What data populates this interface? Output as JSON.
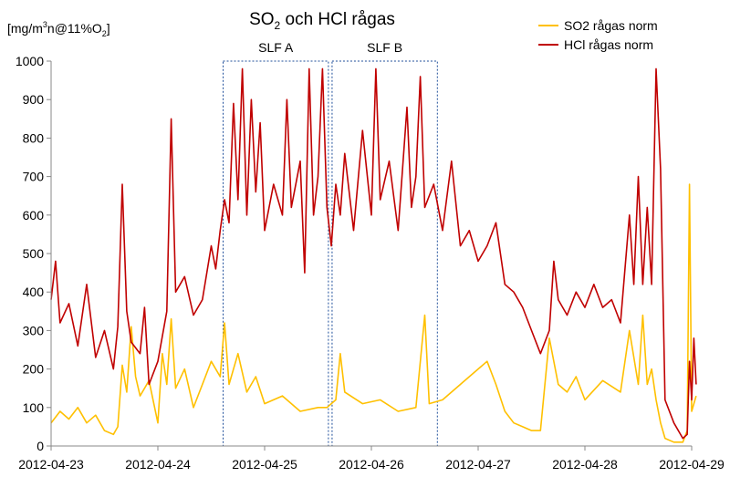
{
  "chart_data": {
    "type": "line",
    "title": {
      "main": "SO",
      "sub": "2",
      "rest": " och HCl rågas"
    },
    "ylabel": {
      "pre": "[mg/m",
      "sup": "3",
      "mid": "n@11%O",
      "sub": "2",
      "post": "]"
    },
    "xlabel": "",
    "x_ticks": [
      "2012-04-23",
      "2012-04-24",
      "2012-04-25",
      "2012-04-26",
      "2012-04-27",
      "2012-04-28",
      "2012-04-29"
    ],
    "xlim": [
      "2012-04-23",
      "2012-04-29"
    ],
    "y_ticks": [
      "0",
      "100",
      "200",
      "300",
      "400",
      "500",
      "600",
      "700",
      "800",
      "900",
      "1000"
    ],
    "ylim": [
      0,
      1000
    ],
    "grid": "none",
    "legend_position": "top-right",
    "regions": [
      {
        "label": "SLF A",
        "x_start": "2012-04-24 14:40",
        "x_end": "2012-04-25 14:20",
        "y_range": [
          0,
          1000
        ]
      },
      {
        "label": "SLF B",
        "x_start": "2012-04-25 15:10",
        "x_end": "2012-04-26 14:50",
        "y_range": [
          0,
          1000
        ]
      }
    ],
    "series": [
      {
        "name": "SO2 rågas norm",
        "color": "#FFC000",
        "points": [
          [
            "2012-04-23 00:00",
            60
          ],
          [
            "2012-04-23 02:00",
            90
          ],
          [
            "2012-04-23 04:00",
            70
          ],
          [
            "2012-04-23 06:00",
            100
          ],
          [
            "2012-04-23 08:00",
            60
          ],
          [
            "2012-04-23 10:00",
            80
          ],
          [
            "2012-04-23 12:00",
            40
          ],
          [
            "2012-04-23 14:00",
            30
          ],
          [
            "2012-04-23 15:00",
            50
          ],
          [
            "2012-04-23 16:00",
            210
          ],
          [
            "2012-04-23 17:00",
            140
          ],
          [
            "2012-04-23 18:00",
            310
          ],
          [
            "2012-04-23 19:00",
            180
          ],
          [
            "2012-04-23 20:00",
            130
          ],
          [
            "2012-04-23 22:00",
            170
          ],
          [
            "2012-04-24 00:00",
            60
          ],
          [
            "2012-04-24 01:00",
            240
          ],
          [
            "2012-04-24 02:00",
            160
          ],
          [
            "2012-04-24 03:00",
            330
          ],
          [
            "2012-04-24 04:00",
            150
          ],
          [
            "2012-04-24 06:00",
            200
          ],
          [
            "2012-04-24 08:00",
            100
          ],
          [
            "2012-04-24 10:00",
            160
          ],
          [
            "2012-04-24 12:00",
            220
          ],
          [
            "2012-04-24 14:00",
            180
          ],
          [
            "2012-04-24 15:00",
            320
          ],
          [
            "2012-04-24 16:00",
            160
          ],
          [
            "2012-04-24 18:00",
            240
          ],
          [
            "2012-04-24 20:00",
            140
          ],
          [
            "2012-04-24 22:00",
            180
          ],
          [
            "2012-04-25 00:00",
            110
          ],
          [
            "2012-04-25 04:00",
            130
          ],
          [
            "2012-04-25 08:00",
            90
          ],
          [
            "2012-04-25 12:00",
            100
          ],
          [
            "2012-04-25 14:00",
            100
          ],
          [
            "2012-04-25 16:00",
            120
          ],
          [
            "2012-04-25 17:00",
            240
          ],
          [
            "2012-04-25 18:00",
            140
          ],
          [
            "2012-04-25 22:00",
            110
          ],
          [
            "2012-04-26 02:00",
            120
          ],
          [
            "2012-04-26 06:00",
            90
          ],
          [
            "2012-04-26 10:00",
            100
          ],
          [
            "2012-04-26 12:00",
            340
          ],
          [
            "2012-04-26 13:00",
            110
          ],
          [
            "2012-04-26 16:00",
            120
          ],
          [
            "2012-04-26 20:00",
            160
          ],
          [
            "2012-04-27 00:00",
            200
          ],
          [
            "2012-04-27 02:00",
            220
          ],
          [
            "2012-04-27 04:00",
            160
          ],
          [
            "2012-04-27 06:00",
            90
          ],
          [
            "2012-04-27 08:00",
            60
          ],
          [
            "2012-04-27 10:00",
            50
          ],
          [
            "2012-04-27 12:00",
            40
          ],
          [
            "2012-04-27 14:00",
            40
          ],
          [
            "2012-04-27 16:00",
            280
          ],
          [
            "2012-04-27 18:00",
            160
          ],
          [
            "2012-04-27 20:00",
            140
          ],
          [
            "2012-04-27 22:00",
            180
          ],
          [
            "2012-04-28 00:00",
            120
          ],
          [
            "2012-04-28 04:00",
            170
          ],
          [
            "2012-04-28 08:00",
            140
          ],
          [
            "2012-04-28 10:00",
            300
          ],
          [
            "2012-04-28 12:00",
            160
          ],
          [
            "2012-04-28 13:00",
            340
          ],
          [
            "2012-04-28 14:00",
            160
          ],
          [
            "2012-04-28 15:00",
            200
          ],
          [
            "2012-04-28 16:00",
            120
          ],
          [
            "2012-04-28 17:00",
            60
          ],
          [
            "2012-04-28 18:00",
            20
          ],
          [
            "2012-04-28 20:00",
            10
          ],
          [
            "2012-04-28 22:00",
            10
          ],
          [
            "2012-04-28 23:00",
            40
          ],
          [
            "2012-04-28 23:30",
            680
          ],
          [
            "2012-04-29 00:00",
            90
          ],
          [
            "2012-04-29 01:00",
            130
          ]
        ]
      },
      {
        "name": "HCl rågas norm",
        "color": "#C00000",
        "points": [
          [
            "2012-04-23 00:00",
            380
          ],
          [
            "2012-04-23 01:00",
            480
          ],
          [
            "2012-04-23 02:00",
            320
          ],
          [
            "2012-04-23 04:00",
            370
          ],
          [
            "2012-04-23 06:00",
            260
          ],
          [
            "2012-04-23 08:00",
            420
          ],
          [
            "2012-04-23 10:00",
            230
          ],
          [
            "2012-04-23 12:00",
            300
          ],
          [
            "2012-04-23 14:00",
            200
          ],
          [
            "2012-04-23 15:00",
            310
          ],
          [
            "2012-04-23 16:00",
            680
          ],
          [
            "2012-04-23 17:00",
            350
          ],
          [
            "2012-04-23 18:00",
            270
          ],
          [
            "2012-04-23 20:00",
            240
          ],
          [
            "2012-04-23 21:00",
            360
          ],
          [
            "2012-04-23 22:00",
            160
          ],
          [
            "2012-04-24 00:00",
            220
          ],
          [
            "2012-04-24 02:00",
            350
          ],
          [
            "2012-04-24 03:00",
            850
          ],
          [
            "2012-04-24 04:00",
            400
          ],
          [
            "2012-04-24 06:00",
            440
          ],
          [
            "2012-04-24 08:00",
            340
          ],
          [
            "2012-04-24 10:00",
            380
          ],
          [
            "2012-04-24 12:00",
            520
          ],
          [
            "2012-04-24 13:00",
            460
          ],
          [
            "2012-04-24 14:00",
            560
          ],
          [
            "2012-04-24 15:00",
            640
          ],
          [
            "2012-04-24 16:00",
            580
          ],
          [
            "2012-04-24 17:00",
            890
          ],
          [
            "2012-04-24 18:00",
            640
          ],
          [
            "2012-04-24 19:00",
            980
          ],
          [
            "2012-04-24 20:00",
            600
          ],
          [
            "2012-04-24 21:00",
            900
          ],
          [
            "2012-04-24 22:00",
            660
          ],
          [
            "2012-04-24 23:00",
            840
          ],
          [
            "2012-04-25 00:00",
            560
          ],
          [
            "2012-04-25 02:00",
            680
          ],
          [
            "2012-04-25 04:00",
            600
          ],
          [
            "2012-04-25 05:00",
            900
          ],
          [
            "2012-04-25 06:00",
            620
          ],
          [
            "2012-04-25 08:00",
            740
          ],
          [
            "2012-04-25 09:00",
            450
          ],
          [
            "2012-04-25 10:00",
            980
          ],
          [
            "2012-04-25 11:00",
            600
          ],
          [
            "2012-04-25 12:00",
            700
          ],
          [
            "2012-04-25 13:00",
            980
          ],
          [
            "2012-04-25 14:00",
            620
          ],
          [
            "2012-04-25 15:00",
            520
          ],
          [
            "2012-04-25 16:00",
            680
          ],
          [
            "2012-04-25 17:00",
            600
          ],
          [
            "2012-04-25 18:00",
            760
          ],
          [
            "2012-04-25 20:00",
            560
          ],
          [
            "2012-04-25 22:00",
            820
          ],
          [
            "2012-04-26 00:00",
            600
          ],
          [
            "2012-04-26 01:00",
            980
          ],
          [
            "2012-04-26 02:00",
            640
          ],
          [
            "2012-04-26 04:00",
            740
          ],
          [
            "2012-04-26 06:00",
            560
          ],
          [
            "2012-04-26 08:00",
            880
          ],
          [
            "2012-04-26 09:00",
            620
          ],
          [
            "2012-04-26 10:00",
            700
          ],
          [
            "2012-04-26 11:00",
            960
          ],
          [
            "2012-04-26 12:00",
            620
          ],
          [
            "2012-04-26 14:00",
            680
          ],
          [
            "2012-04-26 16:00",
            560
          ],
          [
            "2012-04-26 18:00",
            740
          ],
          [
            "2012-04-26 20:00",
            520
          ],
          [
            "2012-04-26 22:00",
            560
          ],
          [
            "2012-04-27 00:00",
            480
          ],
          [
            "2012-04-27 02:00",
            520
          ],
          [
            "2012-04-27 04:00",
            580
          ],
          [
            "2012-04-27 06:00",
            420
          ],
          [
            "2012-04-27 08:00",
            400
          ],
          [
            "2012-04-27 10:00",
            360
          ],
          [
            "2012-04-27 12:00",
            300
          ],
          [
            "2012-04-27 14:00",
            240
          ],
          [
            "2012-04-27 16:00",
            300
          ],
          [
            "2012-04-27 17:00",
            480
          ],
          [
            "2012-04-27 18:00",
            380
          ],
          [
            "2012-04-27 20:00",
            340
          ],
          [
            "2012-04-27 22:00",
            400
          ],
          [
            "2012-04-28 00:00",
            360
          ],
          [
            "2012-04-28 02:00",
            420
          ],
          [
            "2012-04-28 04:00",
            360
          ],
          [
            "2012-04-28 06:00",
            380
          ],
          [
            "2012-04-28 08:00",
            320
          ],
          [
            "2012-04-28 10:00",
            600
          ],
          [
            "2012-04-28 11:00",
            420
          ],
          [
            "2012-04-28 12:00",
            700
          ],
          [
            "2012-04-28 13:00",
            420
          ],
          [
            "2012-04-28 14:00",
            620
          ],
          [
            "2012-04-28 15:00",
            420
          ],
          [
            "2012-04-28 16:00",
            980
          ],
          [
            "2012-04-28 17:00",
            720
          ],
          [
            "2012-04-28 18:00",
            120
          ],
          [
            "2012-04-28 20:00",
            60
          ],
          [
            "2012-04-28 22:00",
            20
          ],
          [
            "2012-04-28 23:00",
            30
          ],
          [
            "2012-04-28 23:30",
            220
          ],
          [
            "2012-04-29 00:00",
            120
          ],
          [
            "2012-04-29 00:30",
            280
          ],
          [
            "2012-04-29 01:00",
            160
          ]
        ]
      }
    ]
  }
}
